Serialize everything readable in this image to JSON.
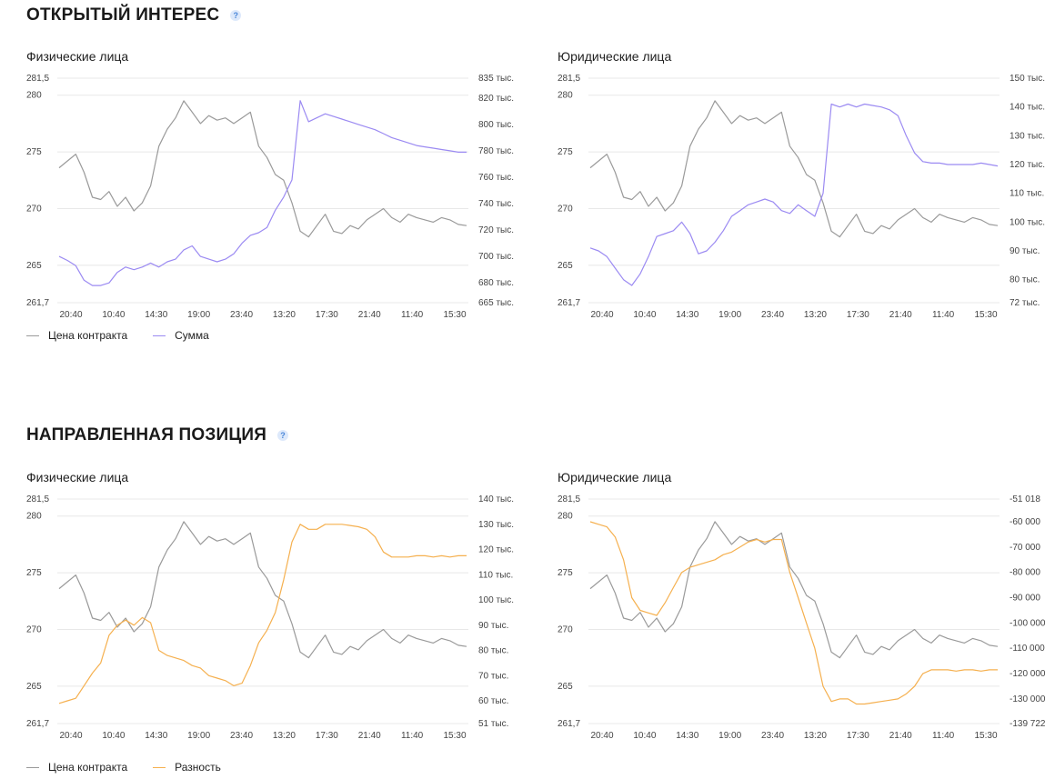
{
  "sections": [
    {
      "title": "ОТКРЫТЫЙ ИНТЕРЕС",
      "help": "?"
    },
    {
      "title": "НАПРАВЛЕННАЯ ПОЗИЦИЯ",
      "help": "?"
    }
  ],
  "colors": {
    "price": "#9a9a9a",
    "sum": "#9b8af2",
    "diff": "#f5b04f",
    "grid": "#e8e8e8"
  },
  "chart_data": [
    {
      "type": "line",
      "title": "Физические лица",
      "x_ticks": [
        "20:40",
        "10:40",
        "14:30",
        "19:00",
        "23:40",
        "13:20",
        "17:30",
        "21:40",
        "11:40",
        "15:30"
      ],
      "left_ticks": [
        "281,5",
        "280",
        "275",
        "270",
        "265",
        "261,7"
      ],
      "right_ticks": [
        "835 тыс.",
        "820 тыс.",
        "800 тыс.",
        "780 тыс.",
        "760 тыс.",
        "740 тыс.",
        "720 тыс.",
        "700 тыс.",
        "680 тыс.",
        "665 тыс."
      ],
      "ylim_left": [
        261.7,
        281.5
      ],
      "ylim_right": [
        665000,
        835000
      ],
      "legend": [
        "Цена контракта",
        "Сумма"
      ],
      "series": [
        {
          "name": "Цена контракта",
          "axis": "left",
          "color_key": "price",
          "values": [
            273.6,
            274.2,
            274.8,
            273.2,
            271.0,
            270.8,
            271.5,
            270.2,
            271.0,
            269.8,
            270.5,
            272.0,
            275.5,
            277.0,
            278.0,
            279.5,
            278.5,
            277.5,
            278.2,
            277.8,
            278.0,
            277.5,
            278.0,
            278.5,
            275.5,
            274.5,
            273.0,
            272.5,
            270.5,
            268.0,
            267.5,
            268.5,
            269.5,
            268.0,
            267.8,
            268.5,
            268.2,
            269.0,
            269.5,
            270.0,
            269.2,
            268.8,
            269.5,
            269.2,
            269.0,
            268.8,
            269.2,
            269.0,
            268.6,
            268.5
          ]
        },
        {
          "name": "Сумма",
          "axis": "right",
          "color_key": "sum",
          "values": [
            700000,
            697000,
            693000,
            682000,
            678000,
            678000,
            680000,
            688000,
            692000,
            690000,
            692000,
            695000,
            692000,
            696000,
            698000,
            705000,
            708000,
            700000,
            698000,
            696000,
            698000,
            702000,
            710000,
            716000,
            718000,
            722000,
            735000,
            745000,
            758000,
            818000,
            802000,
            805000,
            808000,
            806000,
            804000,
            802000,
            800000,
            798000,
            796000,
            793000,
            790000,
            788000,
            786000,
            784000,
            783000,
            782000,
            781000,
            780000,
            779000,
            779000
          ]
        }
      ]
    },
    {
      "type": "line",
      "title": "Юридические лица",
      "x_ticks": [
        "20:40",
        "10:40",
        "14:30",
        "19:00",
        "23:40",
        "13:20",
        "17:30",
        "21:40",
        "11:40",
        "15:30"
      ],
      "left_ticks": [
        "281,5",
        "280",
        "275",
        "270",
        "265",
        "261,7"
      ],
      "right_ticks": [
        "150 тыс.",
        "140 тыс.",
        "130 тыс.",
        "120 тыс.",
        "110 тыс.",
        "100 тыс.",
        "90 тыс.",
        "80 тыс.",
        "72 тыс."
      ],
      "ylim_left": [
        261.7,
        281.5
      ],
      "ylim_right": [
        72000,
        150000
      ],
      "legend": [
        "Цена контракта",
        "Сумма"
      ],
      "series": [
        {
          "name": "Цена контракта",
          "axis": "left",
          "color_key": "price",
          "values": [
            273.6,
            274.2,
            274.8,
            273.2,
            271.0,
            270.8,
            271.5,
            270.2,
            271.0,
            269.8,
            270.5,
            272.0,
            275.5,
            277.0,
            278.0,
            279.5,
            278.5,
            277.5,
            278.2,
            277.8,
            278.0,
            277.5,
            278.0,
            278.5,
            275.5,
            274.5,
            273.0,
            272.5,
            270.5,
            268.0,
            267.5,
            268.5,
            269.5,
            268.0,
            267.8,
            268.5,
            268.2,
            269.0,
            269.5,
            270.0,
            269.2,
            268.8,
            269.5,
            269.2,
            269.0,
            268.8,
            269.2,
            269.0,
            268.6,
            268.5
          ]
        },
        {
          "name": "Сумма",
          "axis": "right",
          "color_key": "sum",
          "values": [
            91000,
            90000,
            88000,
            84000,
            80000,
            78000,
            82000,
            88000,
            95000,
            96000,
            97000,
            100000,
            96000,
            89000,
            90000,
            93000,
            97000,
            102000,
            104000,
            106000,
            107000,
            108000,
            107000,
            104000,
            103000,
            106000,
            104000,
            102000,
            110000,
            141000,
            140000,
            141000,
            140000,
            141000,
            140500,
            140000,
            139000,
            137000,
            130000,
            124000,
            121000,
            120500,
            120500,
            120000,
            120000,
            120000,
            120000,
            120500,
            120000,
            119500
          ]
        }
      ]
    },
    {
      "type": "line",
      "title": "Физические лица",
      "x_ticks": [
        "20:40",
        "10:40",
        "14:30",
        "19:00",
        "23:40",
        "13:20",
        "17:30",
        "21:40",
        "11:40",
        "15:30"
      ],
      "left_ticks": [
        "281,5",
        "280",
        "275",
        "270",
        "265",
        "261,7"
      ],
      "right_ticks": [
        "140 тыс.",
        "130 тыс.",
        "120 тыс.",
        "110 тыс.",
        "100 тыс.",
        "90 тыс.",
        "80 тыс.",
        "70 тыс.",
        "60 тыс.",
        "51 тыс."
      ],
      "ylim_left": [
        261.7,
        281.5
      ],
      "ylim_right": [
        51000,
        140000
      ],
      "legend": [
        "Цена контракта",
        "Разность"
      ],
      "series": [
        {
          "name": "Цена контракта",
          "axis": "left",
          "color_key": "price",
          "values": [
            273.6,
            274.2,
            274.8,
            273.2,
            271.0,
            270.8,
            271.5,
            270.2,
            271.0,
            269.8,
            270.5,
            272.0,
            275.5,
            277.0,
            278.0,
            279.5,
            278.5,
            277.5,
            278.2,
            277.8,
            278.0,
            277.5,
            278.0,
            278.5,
            275.5,
            274.5,
            273.0,
            272.5,
            270.5,
            268.0,
            267.5,
            268.5,
            269.5,
            268.0,
            267.8,
            268.5,
            268.2,
            269.0,
            269.5,
            270.0,
            269.2,
            268.8,
            269.5,
            269.2,
            269.0,
            268.8,
            269.2,
            269.0,
            268.6,
            268.5
          ]
        },
        {
          "name": "Разность",
          "axis": "right",
          "color_key": "diff",
          "values": [
            59000,
            60000,
            61000,
            66000,
            71000,
            75000,
            86000,
            90000,
            92000,
            90000,
            93000,
            91000,
            80000,
            78000,
            77000,
            76000,
            74000,
            73000,
            70000,
            69000,
            68000,
            66000,
            67000,
            74000,
            83000,
            88000,
            95000,
            108000,
            123000,
            130000,
            128000,
            128000,
            130000,
            130000,
            130000,
            129500,
            129000,
            128000,
            125000,
            119000,
            117000,
            117000,
            117000,
            117500,
            117500,
            117000,
            117500,
            117000,
            117500,
            117500
          ]
        }
      ]
    },
    {
      "type": "line",
      "title": "Юридические лица",
      "x_ticks": [
        "20:40",
        "10:40",
        "14:30",
        "19:00",
        "23:40",
        "13:20",
        "17:30",
        "21:40",
        "11:40",
        "15:30"
      ],
      "left_ticks": [
        "281,5",
        "280",
        "275",
        "270",
        "265",
        "261,7"
      ],
      "right_ticks": [
        "-51 018",
        "-60 000",
        "-70 000",
        "-80 000",
        "-90 000",
        "-100 000",
        "-110 000",
        "-120 000",
        "-130 000",
        "-139 722"
      ],
      "ylim_left": [
        261.7,
        281.5
      ],
      "ylim_right": [
        -139722,
        -51018
      ],
      "legend": [
        "Цена контракта",
        "Разность"
      ],
      "series": [
        {
          "name": "Цена контракта",
          "axis": "left",
          "color_key": "price",
          "values": [
            273.6,
            274.2,
            274.8,
            273.2,
            271.0,
            270.8,
            271.5,
            270.2,
            271.0,
            269.8,
            270.5,
            272.0,
            275.5,
            277.0,
            278.0,
            279.5,
            278.5,
            277.5,
            278.2,
            277.8,
            278.0,
            277.5,
            278.0,
            278.5,
            275.5,
            274.5,
            273.0,
            272.5,
            270.5,
            268.0,
            267.5,
            268.5,
            269.5,
            268.0,
            267.8,
            268.5,
            268.2,
            269.0,
            269.5,
            270.0,
            269.2,
            268.8,
            269.5,
            269.2,
            269.0,
            268.8,
            269.2,
            269.0,
            268.6,
            268.5
          ]
        },
        {
          "name": "Разность",
          "axis": "right",
          "color_key": "diff",
          "values": [
            -60000,
            -61000,
            -62000,
            -66000,
            -75000,
            -90000,
            -95000,
            -96000,
            -97000,
            -92000,
            -86000,
            -80000,
            -78000,
            -77000,
            -76000,
            -75000,
            -73000,
            -72000,
            -70000,
            -68000,
            -67000,
            -68000,
            -67000,
            -67000,
            -80000,
            -90000,
            -100000,
            -110000,
            -125000,
            -131000,
            -130000,
            -130000,
            -132000,
            -132000,
            -131500,
            -131000,
            -130500,
            -130000,
            -128000,
            -125000,
            -120000,
            -118500,
            -118500,
            -118500,
            -119000,
            -118500,
            -118500,
            -119000,
            -118500,
            -118500
          ]
        }
      ]
    }
  ]
}
